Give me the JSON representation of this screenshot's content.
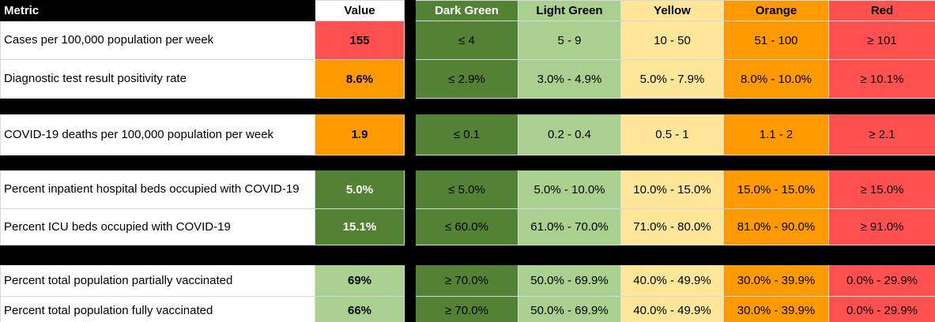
{
  "header": {
    "metric": "Metric",
    "value": "Value",
    "levels": [
      "Dark Green",
      "Light Green",
      "Yellow",
      "Orange",
      "Red"
    ]
  },
  "rows": [
    {
      "metric": "Cases  per 100,000 population per week",
      "value": "155",
      "ranges": [
        "≤ 4",
        "5 - 9",
        "10 - 50",
        "51 - 100",
        "≥ 101"
      ]
    },
    {
      "metric": "Diagnostic test result positivity rate",
      "value": "8.6%",
      "ranges": [
        "≤ 2.9%",
        "3.0% - 4.9%",
        "5.0% - 7.9%",
        "8.0% - 10.0%",
        "≥ 10.1%"
      ]
    },
    {
      "metric": "COVID-19 deaths per 100,000 population per week",
      "value": "1.9",
      "ranges": [
        "≤ 0.1",
        "0.2 - 0.4",
        "0.5 - 1",
        "1.1 - 2",
        "≥ 2.1"
      ]
    },
    {
      "metric": "Percent inpatient hospital beds occupied with COVID-19",
      "value": "5.0%",
      "ranges": [
        "≤ 5.0%",
        "5.0% - 10.0%",
        "10.0% - 15.0%",
        "15.0% - 15.0%",
        "≥ 15.0%"
      ]
    },
    {
      "metric": "Percent ICU beds occupied with COVID-19",
      "value": "15.1%",
      "ranges": [
        "≤ 60.0%",
        "61.0% - 70.0%",
        "71.0% - 80.0%",
        "81.0% - 90.0%",
        "≥ 91.0%"
      ]
    },
    {
      "metric": "Percent total population partially vaccinated",
      "value": "69%",
      "ranges": [
        "≥ 70.0%",
        "50.0% - 69.9%",
        "40.0% - 49.9%",
        "30.0% - 39.9%",
        "0.0% - 29.9%"
      ]
    },
    {
      "metric": "Percent total population fully vaccinated",
      "value": "66%",
      "ranges": [
        "≥ 70.0%",
        "50.0% - 69.9%",
        "40.0% - 49.9%",
        "30.0% - 39.9%",
        "0.0% - 29.9%"
      ]
    }
  ]
}
